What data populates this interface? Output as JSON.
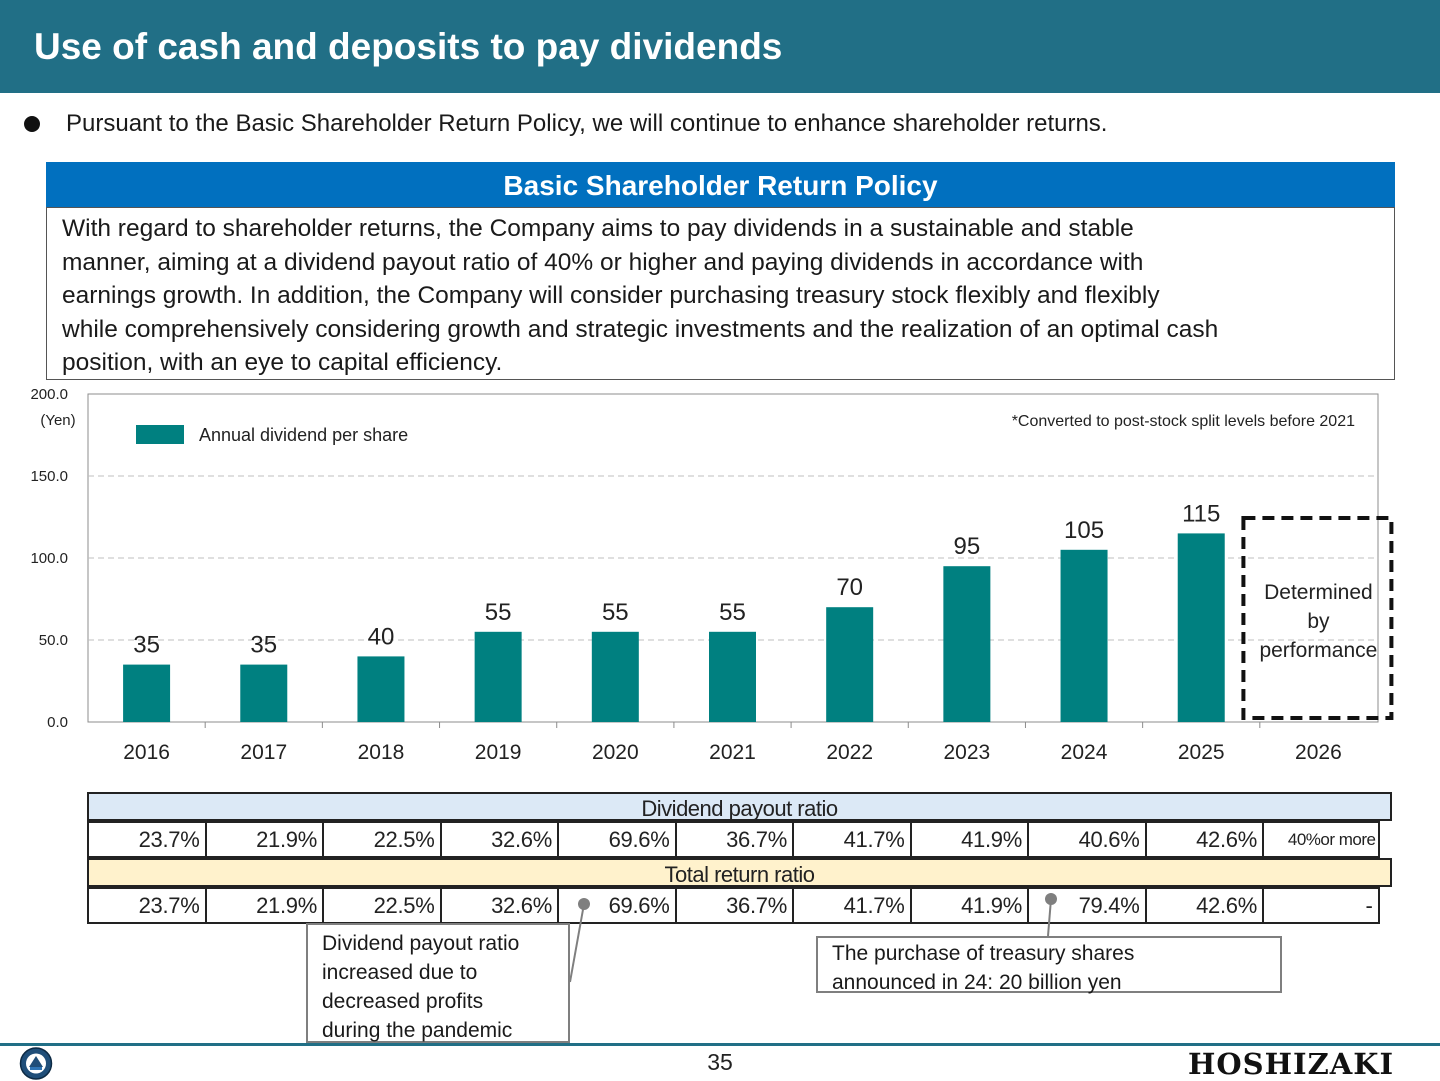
{
  "header": {
    "title": "Use of cash and deposits to pay dividends"
  },
  "intro": {
    "bullet_text": "Pursuant to the Basic Shareholder Return Policy, we will continue to enhance shareholder returns."
  },
  "policy": {
    "heading": "Basic Shareholder Return Policy",
    "lines": [
      "With regard to shareholder returns, the Company aims to pay dividends in a sustainable and stable",
      "manner, aiming at a dividend payout ratio of 40% or higher and paying dividends in accordance with",
      "earnings growth. In addition, the Company will consider purchasing treasury stock flexibly and flexibly",
      "while comprehensively considering growth and strategic investments and the realization of an optimal cash",
      "position, with an eye to capital efficiency."
    ]
  },
  "chart_data": {
    "type": "bar",
    "categories": [
      "2016",
      "2017",
      "2018",
      "2019",
      "2020",
      "2021",
      "2022",
      "2023",
      "2024",
      "2025",
      "2026"
    ],
    "series": [
      {
        "name": "Annual dividend per share",
        "values": [
          35,
          35,
          40,
          55,
          55,
          55,
          70,
          95,
          105,
          115,
          null
        ],
        "color": "#008080"
      }
    ],
    "data_labels": [
      "35",
      "35",
      "40",
      "55",
      "55",
      "55",
      "70",
      "95",
      "105",
      "115",
      ""
    ],
    "yticks": [
      0,
      50,
      100,
      150,
      200
    ],
    "ytick_labels": [
      "0.0",
      "50.0",
      "100.0",
      "150.0",
      "200.0"
    ],
    "ylim": [
      0,
      200
    ],
    "ylabel": "(Yen)",
    "grid": "horizontal-dashed",
    "legend_position": "top-left",
    "note": "*Converted to post-stock split levels before 2021",
    "placeholder_label": [
      "Determined",
      "by",
      "performance"
    ]
  },
  "ratios": {
    "payout": {
      "title": "Dividend payout ratio",
      "values": [
        "23.7%",
        "21.9%",
        "22.5%",
        "32.6%",
        "69.6%",
        "36.7%",
        "41.7%",
        "41.9%",
        "40.6%",
        "42.6%",
        "40%or more"
      ]
    },
    "total": {
      "title": "Total return ratio",
      "values": [
        "23.7%",
        "21.9%",
        "22.5%",
        "32.6%",
        "69.6%",
        "36.7%",
        "41.7%",
        "41.9%",
        "79.4%",
        "42.6%",
        "-"
      ]
    }
  },
  "callouts": {
    "pandemic": [
      "Dividend payout ratio",
      "increased due to",
      "decreased profits",
      "during the pandemic"
    ],
    "treasury": [
      "The purchase of treasury shares",
      "announced in 24: 20 billion yen"
    ]
  },
  "footer": {
    "page_number": "35",
    "brand": "HOSHIZAKI"
  },
  "colors": {
    "header": "#216f86",
    "policy_head": "#0170bf",
    "bar": "#008080",
    "payout_row": "#dce9f6",
    "total_row": "#fff2cc"
  }
}
